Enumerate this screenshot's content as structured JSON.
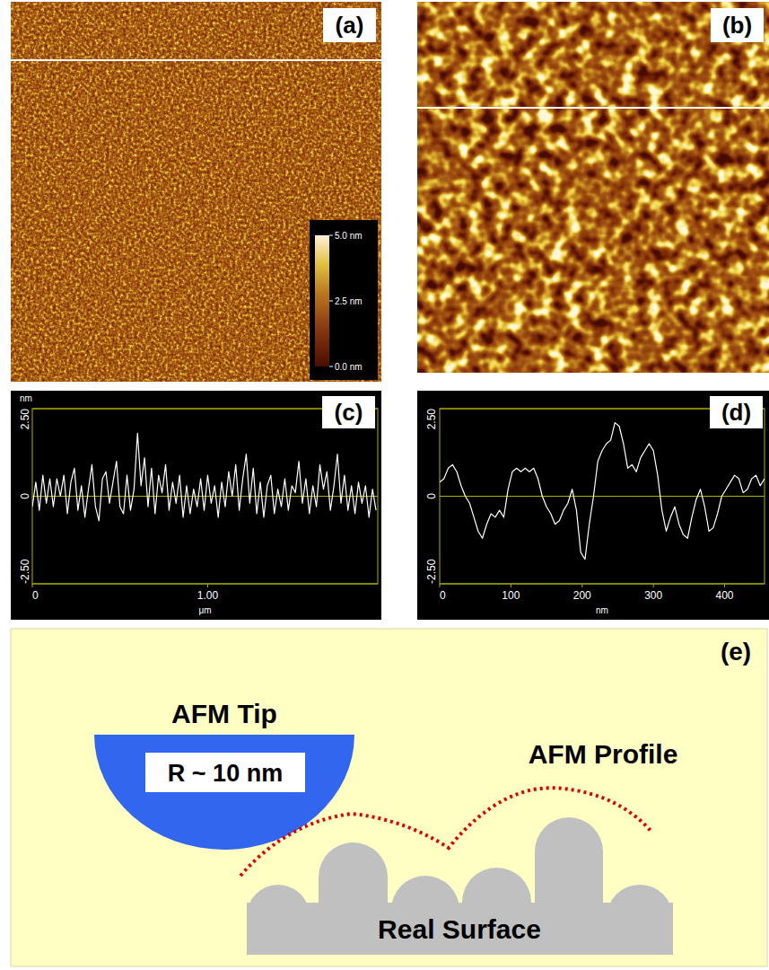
{
  "chart_data": [
    {
      "type": "line",
      "title": "(c)",
      "ylabel": "nm",
      "xlabel": "μm",
      "color": "#ffffff",
      "grid": false,
      "xlim": [
        0,
        1.97
      ],
      "ylim": [
        -2.5,
        2.5
      ],
      "xticks": [
        0,
        {
          "value": 1,
          "label": "1.00"
        }
      ],
      "yticks": [
        {
          "value": 2.5,
          "label": "2.50"
        },
        0,
        {
          "value": -2.5,
          "label": "-2.50"
        }
      ],
      "x": [
        0,
        0.02,
        0.04,
        0.06,
        0.08,
        0.1,
        0.12,
        0.14,
        0.16,
        0.18,
        0.2,
        0.22,
        0.24,
        0.26,
        0.28,
        0.3,
        0.32,
        0.34,
        0.36,
        0.38,
        0.4,
        0.42,
        0.44,
        0.46,
        0.48,
        0.5,
        0.52,
        0.54,
        0.56,
        0.58,
        0.6,
        0.62,
        0.64,
        0.66,
        0.68,
        0.7,
        0.72,
        0.74,
        0.76,
        0.78,
        0.8,
        0.82,
        0.84,
        0.86,
        0.88,
        0.9,
        0.92,
        0.94,
        0.96,
        0.98,
        1,
        1.02,
        1.04,
        1.06,
        1.08,
        1.1,
        1.12,
        1.14,
        1.16,
        1.18,
        1.2,
        1.22,
        1.24,
        1.26,
        1.28,
        1.3,
        1.32,
        1.34,
        1.36,
        1.38,
        1.4,
        1.42,
        1.44,
        1.46,
        1.48,
        1.5,
        1.52,
        1.54,
        1.56,
        1.58,
        1.6,
        1.62,
        1.64,
        1.66,
        1.68,
        1.7,
        1.72,
        1.74,
        1.76,
        1.78,
        1.8,
        1.82,
        1.84,
        1.86,
        1.88,
        1.9,
        1.92,
        1.94,
        1.96
      ],
      "values": [
        -0.3,
        0.4,
        -0.4,
        0.6,
        -0.2,
        0.5,
        -0.3,
        0.5,
        0,
        0.6,
        -0.5,
        0.4,
        0.8,
        -0.4,
        0.3,
        -0.6,
        0.2,
        0.9,
        -0.3,
        -0.7,
        0.5,
        0.7,
        -0.2,
        0.4,
        1,
        -0.3,
        -0.5,
        0.6,
        -0.4,
        0.2,
        1.8,
        0.3,
        1.1,
        -0.3,
        0.8,
        -0.5,
        0.6,
        0.1,
        0.9,
        -0.4,
        0.4,
        -0.2,
        0.6,
        -0.6,
        0.3,
        -0.5,
        0.2,
        -0.3,
        0.5,
        -0.4,
        0.6,
        -0.2,
        0.3,
        -0.6,
        0.4,
        -0.3,
        0.7,
        0,
        0.9,
        -0.4,
        0.5,
        1.2,
        -0.2,
        0.8,
        -0.5,
        0.4,
        -0.6,
        0.3,
        0.6,
        -0.5,
        0.2,
        -0.3,
        0.5,
        -0.4,
        0.3,
        0.1,
        1,
        -0.2,
        0.5,
        -0.5,
        0.3,
        -0.3,
        0.9,
        0.2,
        0.7,
        -0.4,
        0.3,
        1.2,
        -0.2,
        0.6,
        -0.4,
        0.3,
        -0.5,
        0.4,
        -0.2,
        0.3,
        -0.6,
        0.2,
        -0.4
      ]
    },
    {
      "type": "line",
      "title": "(d)",
      "xlabel": "nm",
      "color": "#ffffff",
      "grid": false,
      "xlim": [
        0,
        456
      ],
      "ylim": [
        -2.5,
        2.5
      ],
      "xticks": [
        0,
        100,
        200,
        300,
        400
      ],
      "yticks": [
        {
          "value": 2.5,
          "label": "2.50"
        },
        0,
        {
          "value": -2.5,
          "label": "-2.50"
        }
      ],
      "x": [
        0,
        6,
        12,
        18,
        24,
        30,
        36,
        42,
        48,
        54,
        60,
        66,
        72,
        78,
        84,
        90,
        96,
        102,
        108,
        114,
        120,
        126,
        132,
        138,
        144,
        150,
        156,
        162,
        168,
        174,
        180,
        186,
        192,
        198,
        204,
        210,
        216,
        222,
        228,
        234,
        240,
        246,
        252,
        258,
        264,
        270,
        276,
        282,
        288,
        294,
        300,
        306,
        312,
        318,
        324,
        330,
        336,
        342,
        348,
        354,
        360,
        366,
        372,
        378,
        384,
        390,
        396,
        402,
        408,
        414,
        420,
        426,
        432,
        438,
        444,
        450,
        456
      ],
      "values": [
        0.4,
        0.5,
        0.8,
        0.9,
        0.7,
        0.3,
        0,
        -0.2,
        -0.6,
        -1,
        -1.2,
        -0.8,
        -0.5,
        -0.6,
        -0.4,
        -0.6,
        0.2,
        0.7,
        0.8,
        0.7,
        0.8,
        0.7,
        0.8,
        0.5,
        0,
        -0.3,
        -0.5,
        -0.8,
        -0.7,
        -0.4,
        -0.2,
        0.2,
        -0.4,
        -1.6,
        -1.8,
        -0.8,
        0,
        1,
        1.3,
        1.5,
        1.6,
        2.1,
        2,
        1.5,
        0.8,
        0.9,
        0.7,
        1.1,
        1.3,
        1.5,
        1.3,
        0.6,
        -0.4,
        -1,
        -0.6,
        -0.3,
        -0.8,
        -1.1,
        -1.2,
        -0.6,
        -0.1,
        0.2,
        -0.3,
        -1,
        -0.9,
        -0.5,
        0,
        0.2,
        0.4,
        0.6,
        0.5,
        0.1,
        0.2,
        0.5,
        0.6,
        0.3,
        0.5
      ]
    }
  ],
  "images": [
    {
      "label": "(a)",
      "colorbar": {
        "range": [
          0,
          5
        ],
        "ticks": [
          {
            "value": 5,
            "label": "5.0 nm"
          },
          {
            "value": 2.5,
            "label": "2.5 nm"
          },
          {
            "value": 0,
            "label": "0.0 nm"
          }
        ]
      }
    },
    {
      "label": "(b)"
    }
  ],
  "schematic": {
    "label": "(e)",
    "tip_label": "AFM Tip",
    "radius_label": "R ~ 10 nm",
    "profile_label": "AFM Profile",
    "surface_label": "Real Surface"
  }
}
